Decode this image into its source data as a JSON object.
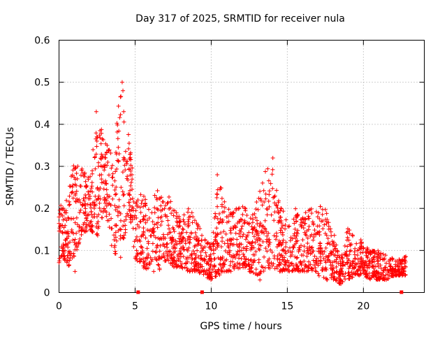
{
  "chart_data": {
    "type": "scatter",
    "title": "Day 317 of 2025, SRMTID for receiver nula",
    "xlabel": "GPS time / hours",
    "ylabel": "SRMTID / TECUs",
    "xlim": [
      0,
      24
    ],
    "ylim": [
      0,
      0.6
    ],
    "xticks": [
      0,
      5,
      10,
      15,
      20
    ],
    "yticks": [
      0,
      0.1,
      0.2,
      0.3,
      0.4,
      0.5,
      0.6
    ],
    "xtick_labels": [
      "0",
      "5",
      "10",
      "15",
      "20"
    ],
    "ytick_labels": [
      "0",
      "0.1",
      "0.2",
      "0.3",
      "0.4",
      "0.5",
      "0.6"
    ],
    "grid": true,
    "marker": "+",
    "series": [
      {
        "name": "SRMTID",
        "color": "#ff0000",
        "envelope": {
          "x": [
            0,
            0.3,
            0.6,
            1.0,
            1.5,
            2.0,
            2.5,
            3.0,
            3.5,
            4.0,
            4.3,
            4.6,
            5.0,
            5.5,
            6.0,
            6.5,
            7.0,
            7.5,
            8.0,
            8.5,
            9.0,
            9.5,
            10.0,
            10.5,
            11.0,
            11.5,
            12.0,
            12.5,
            13.0,
            13.5,
            14.0,
            14.5,
            15.0,
            15.5,
            16.0,
            16.5,
            17.0,
            17.5,
            18.0,
            18.5,
            19.0,
            19.5,
            20.0,
            20.5,
            21.0,
            21.5,
            22.0,
            22.5,
            22.8
          ],
          "low": [
            0.07,
            0.08,
            0.06,
            0.08,
            0.14,
            0.15,
            0.13,
            0.2,
            0.1,
            0.08,
            0.1,
            0.2,
            0.08,
            0.06,
            0.05,
            0.05,
            0.07,
            0.06,
            0.06,
            0.05,
            0.05,
            0.04,
            0.03,
            0.04,
            0.05,
            0.05,
            0.06,
            0.05,
            0.04,
            0.05,
            0.06,
            0.05,
            0.05,
            0.05,
            0.05,
            0.05,
            0.04,
            0.03,
            0.03,
            0.02,
            0.03,
            0.04,
            0.04,
            0.03,
            0.03,
            0.03,
            0.04,
            0.04,
            0.04
          ],
          "high": [
            0.22,
            0.2,
            0.24,
            0.32,
            0.3,
            0.27,
            0.43,
            0.36,
            0.33,
            0.5,
            0.4,
            0.38,
            0.22,
            0.24,
            0.2,
            0.26,
            0.25,
            0.2,
            0.18,
            0.2,
            0.18,
            0.13,
            0.12,
            0.28,
            0.2,
            0.2,
            0.21,
            0.19,
            0.22,
            0.32,
            0.3,
            0.22,
            0.17,
            0.2,
            0.19,
            0.2,
            0.21,
            0.2,
            0.15,
            0.08,
            0.16,
            0.12,
            0.13,
            0.1,
            0.1,
            0.09,
            0.08,
            0.08,
            0.09
          ]
        },
        "outliers": [
          {
            "x": 2.45,
            "y": 0.43
          },
          {
            "x": 4.15,
            "y": 0.5
          },
          {
            "x": 4.2,
            "y": 0.48
          },
          {
            "x": 4.25,
            "y": 0.43
          },
          {
            "x": 10.4,
            "y": 0.28
          },
          {
            "x": 14.05,
            "y": 0.32
          },
          {
            "x": 1.05,
            "y": 0.05
          },
          {
            "x": 13.2,
            "y": 0.03
          }
        ],
        "zero_markers_x": [
          5.2,
          9.4,
          22.5
        ]
      }
    ]
  }
}
